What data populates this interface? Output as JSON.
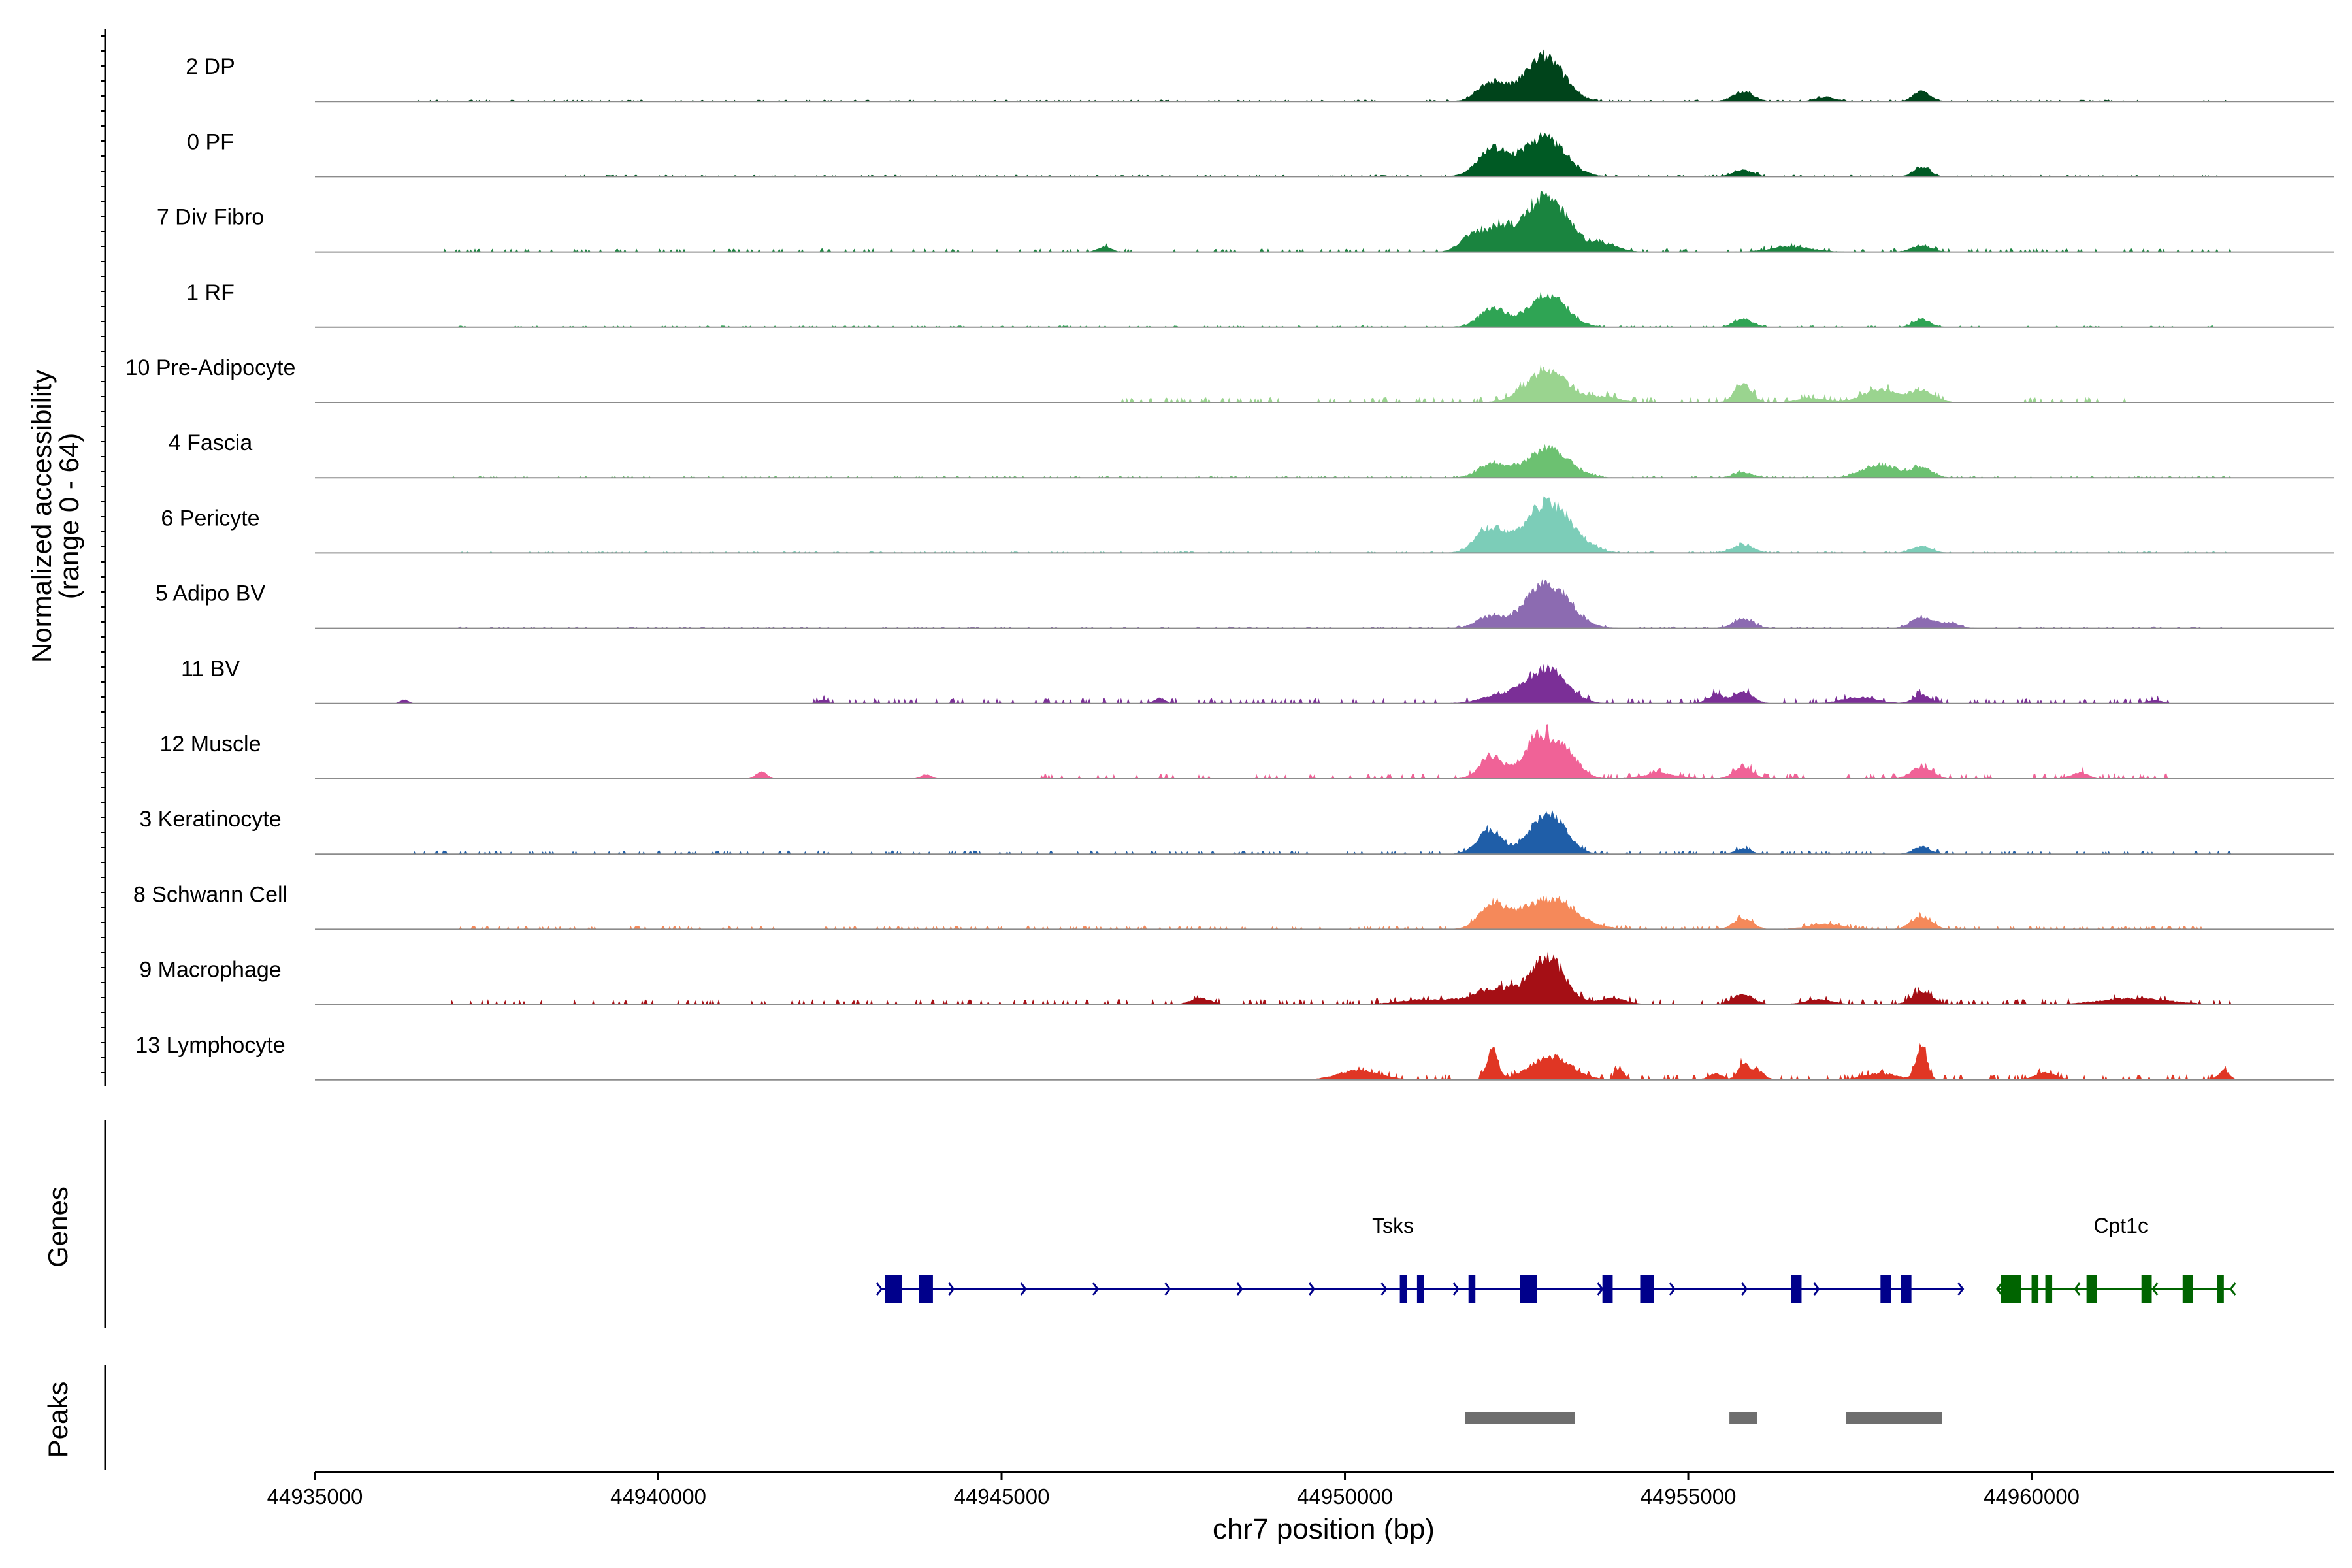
{
  "chart_data": {
    "type": "area",
    "title": "",
    "ylabel_line1": "Normalized accessibility",
    "ylabel_line2": "(range 0 - 64)",
    "xlabel": "chr7 position (bp)",
    "y_range": [
      0,
      64
    ],
    "xlim": [
      44935000,
      44964400
    ],
    "x_ticks": [
      44935000,
      44940000,
      44945000,
      44950000,
      44955000,
      44960000
    ],
    "x_tick_labels": [
      "44935000",
      "44940000",
      "44945000",
      "44950000",
      "44955000",
      "44960000"
    ],
    "tracks": [
      {
        "name": "2 DP",
        "color": "#00441b",
        "peaks": [
          [
            44952150,
            18,
            200
          ],
          [
            44952900,
            42,
            280
          ],
          [
            44955800,
            9,
            150
          ],
          [
            44958400,
            10,
            120
          ],
          [
            44957000,
            4,
            150
          ]
        ],
        "noise_from": 44936500,
        "noise_to": 44962900,
        "noise_level": 1
      },
      {
        "name": "0 PF",
        "color": "#005a24",
        "peaks": [
          [
            44952150,
            26,
            220
          ],
          [
            44952900,
            37,
            300
          ],
          [
            44955800,
            6,
            150
          ],
          [
            44958400,
            9,
            120
          ]
        ],
        "noise_from": 44938500,
        "noise_to": 44962900,
        "noise_level": 1
      },
      {
        "name": "7 Div Fibro",
        "color": "#1a843f",
        "peaks": [
          [
            44951800,
            10,
            150
          ],
          [
            44952200,
            22,
            250
          ],
          [
            44952950,
            52,
            300
          ],
          [
            44953800,
            7,
            200
          ],
          [
            44956500,
            5,
            300
          ],
          [
            44958400,
            6,
            150
          ],
          [
            44946500,
            5,
            100
          ]
        ],
        "noise_from": 44936700,
        "noise_to": 44962900,
        "noise_level": 2
      },
      {
        "name": "1 RF",
        "color": "#2fa454",
        "peaks": [
          [
            44952150,
            17,
            200
          ],
          [
            44952950,
            30,
            280
          ],
          [
            44955800,
            7,
            140
          ],
          [
            44958400,
            8,
            120
          ]
        ],
        "noise_from": 44937000,
        "noise_to": 44962900,
        "noise_level": 1
      },
      {
        "name": "10 Pre-Adipocyte",
        "color": "#9ad48f",
        "peaks": [
          [
            44952950,
            30,
            300
          ],
          [
            44955800,
            18,
            120
          ],
          [
            44957800,
            12,
            250
          ],
          [
            44958400,
            11,
            180
          ],
          [
            44953800,
            5,
            200
          ],
          [
            44956800,
            4,
            200
          ]
        ],
        "noise_from": 44946700,
        "noise_to": 44961400,
        "noise_level": 3
      },
      {
        "name": "4 Fascia",
        "color": "#6cc171",
        "peaks": [
          [
            44952150,
            13,
            200
          ],
          [
            44952950,
            28,
            300
          ],
          [
            44955800,
            5,
            140
          ],
          [
            44957800,
            12,
            250
          ],
          [
            44958400,
            10,
            150
          ]
        ],
        "noise_from": 44937000,
        "noise_to": 44962900,
        "noise_level": 1
      },
      {
        "name": "6 Pericyte",
        "color": "#7ccdb8",
        "peaks": [
          [
            44952100,
            22,
            200
          ],
          [
            44952950,
            47,
            350
          ],
          [
            44955800,
            8,
            150
          ],
          [
            44958400,
            6,
            150
          ]
        ],
        "noise_from": 44937000,
        "noise_to": 44962900,
        "noise_level": 1
      },
      {
        "name": "5 Adipo BV",
        "color": "#8c6bb1",
        "peaks": [
          [
            44952100,
            10,
            200
          ],
          [
            44952950,
            42,
            320
          ],
          [
            44955800,
            9,
            150
          ],
          [
            44958400,
            10,
            150
          ],
          [
            44958800,
            5,
            150
          ]
        ],
        "noise_from": 44937000,
        "noise_to": 44962900,
        "noise_level": 1
      },
      {
        "name": "11 BV",
        "color": "#7b2f97",
        "peaks": [
          [
            44952950,
            32,
            280
          ],
          [
            44952300,
            8,
            300
          ],
          [
            44955800,
            11,
            140
          ],
          [
            44955400,
            8,
            120
          ],
          [
            44958400,
            8,
            120
          ],
          [
            44957500,
            6,
            250
          ],
          [
            44936300,
            4,
            60
          ],
          [
            44942400,
            4,
            60
          ],
          [
            44947300,
            5,
            80
          ],
          [
            44961800,
            3,
            100
          ]
        ],
        "noise_from": 44942000,
        "noise_to": 44962000,
        "noise_level": 3
      },
      {
        "name": "12 Muscle",
        "color": "#f06297",
        "peaks": [
          [
            44952150,
            20,
            180
          ],
          [
            44952800,
            38,
            200
          ],
          [
            44953200,
            26,
            200
          ],
          [
            44955800,
            11,
            140
          ],
          [
            44958400,
            11,
            150
          ],
          [
            44941500,
            7,
            80
          ],
          [
            44943900,
            4,
            80
          ],
          [
            44954600,
            5,
            250
          ],
          [
            44960700,
            6,
            120
          ]
        ],
        "noise_from": 44945500,
        "noise_to": 44962000,
        "noise_level": 3
      },
      {
        "name": "3 Keratinocyte",
        "color": "#1f5ea8",
        "peaks": [
          [
            44952100,
            22,
            180
          ],
          [
            44952950,
            40,
            250
          ],
          [
            44955800,
            5,
            120
          ],
          [
            44958400,
            7,
            120
          ]
        ],
        "noise_from": 44936300,
        "noise_to": 44962900,
        "noise_level": 2
      },
      {
        "name": "8 Schwann Cell",
        "color": "#f5895a",
        "peaks": [
          [
            44952150,
            20,
            200
          ],
          [
            44952950,
            28,
            400
          ],
          [
            44955800,
            10,
            140
          ],
          [
            44958400,
            12,
            150
          ],
          [
            44957000,
            5,
            250
          ]
        ],
        "noise_from": 44937000,
        "noise_to": 44962900,
        "noise_level": 2
      },
      {
        "name": "9 Macrophage",
        "color": "#a50f15",
        "peaks": [
          [
            44952950,
            45,
            250
          ],
          [
            44952200,
            15,
            300
          ],
          [
            44951200,
            5,
            400
          ],
          [
            44955800,
            10,
            150
          ],
          [
            44958400,
            12,
            150
          ],
          [
            44953900,
            6,
            200
          ],
          [
            44956900,
            5,
            200
          ],
          [
            44947900,
            6,
            150
          ],
          [
            44961500,
            6,
            500
          ]
        ],
        "noise_from": 44936700,
        "noise_to": 44962900,
        "noise_level": 3
      },
      {
        "name": "13 Lymphocyte",
        "color": "#e03624",
        "peaks": [
          [
            44952150,
            30,
            80
          ],
          [
            44953000,
            22,
            300
          ],
          [
            44955800,
            14,
            80
          ],
          [
            44958400,
            30,
            80
          ],
          [
            44950200,
            9,
            300
          ],
          [
            44954000,
            12,
            60
          ],
          [
            44955400,
            6,
            100
          ],
          [
            44956000,
            9,
            100
          ],
          [
            44957800,
            6,
            250
          ],
          [
            44960200,
            7,
            150
          ],
          [
            44962800,
            9,
            80
          ]
        ],
        "noise_from": 44949900,
        "noise_to": 44962900,
        "noise_level": 3
      }
    ],
    "genes_label": "Genes",
    "genes": [
      {
        "name": "Tsks",
        "color": "#00008b",
        "strand": "+",
        "start": 44943250,
        "end": 44959000,
        "exons": [
          [
            44943300,
            44943550
          ],
          [
            44943800,
            44944000
          ],
          [
            44950800,
            44950900
          ],
          [
            44951050,
            44951150
          ],
          [
            44951800,
            44951900
          ],
          [
            44952550,
            44952800
          ],
          [
            44953750,
            44953900
          ],
          [
            44954300,
            44954500
          ],
          [
            44956500,
            44956650
          ],
          [
            44957800,
            44957950
          ],
          [
            44958100,
            44958250
          ]
        ]
      },
      {
        "name": "Cpt1c",
        "color": "#006400",
        "strand": "-",
        "start": 44959500,
        "end": 44962900,
        "exons": [
          [
            44959550,
            44959850
          ],
          [
            44960000,
            44960100
          ],
          [
            44960200,
            44960300
          ],
          [
            44960800,
            44960950
          ],
          [
            44961600,
            44961750
          ],
          [
            44962200,
            44962350
          ],
          [
            44962700,
            44962800
          ]
        ]
      }
    ],
    "peaks_label": "Peaks",
    "peak_regions": [
      [
        44951750,
        44953350
      ],
      [
        44955600,
        44956000
      ],
      [
        44957300,
        44958700
      ]
    ]
  }
}
